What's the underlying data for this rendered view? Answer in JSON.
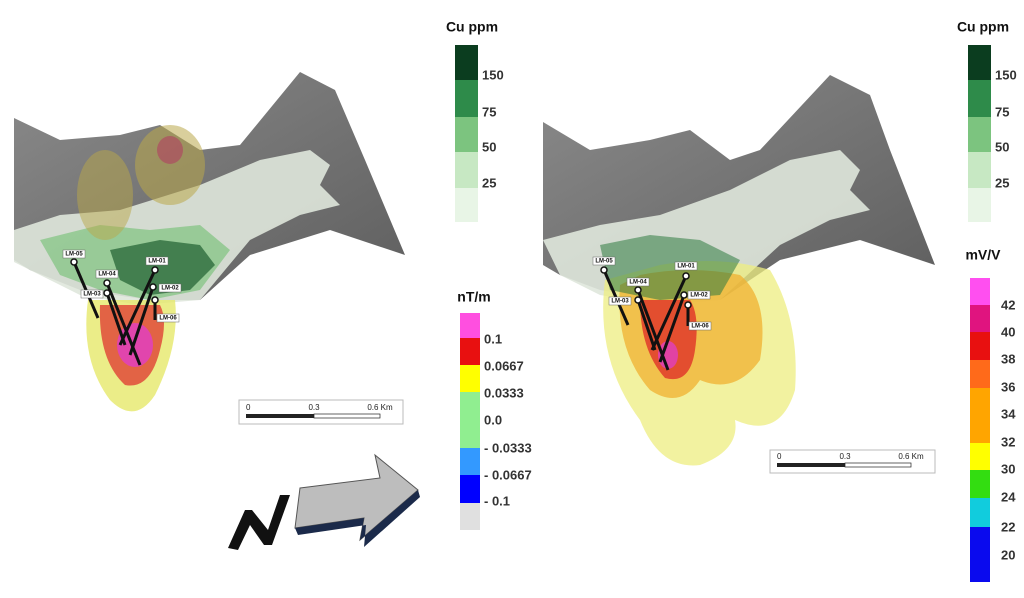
{
  "left_panel": {
    "cu_legend": {
      "title": "Cu ppm",
      "labels": [
        "150",
        "75",
        "50",
        "25"
      ]
    },
    "mag_legend": {
      "title": "nT/m",
      "labels": [
        "0.1",
        "0.0667",
        "0.0333",
        "0.0",
        "- 0.0333",
        "- 0.0667",
        "- 0.1"
      ]
    },
    "scale_bar": {
      "labels": [
        "0",
        "0.3",
        "0.6 Km"
      ]
    },
    "drillholes": [
      "LM-05",
      "LM-04",
      "LM-03",
      "LM-01",
      "LM-02",
      "LM-06"
    ]
  },
  "right_panel": {
    "cu_legend": {
      "title": "Cu ppm",
      "labels": [
        "150",
        "75",
        "50",
        "25"
      ]
    },
    "ip_legend": {
      "title": "mV/V",
      "labels": [
        "42",
        "40",
        "38",
        "36",
        "34",
        "32",
        "30",
        "24",
        "22",
        "20"
      ]
    },
    "scale_bar": {
      "labels": [
        "0",
        "0.3",
        "0.6 Km"
      ]
    },
    "drillholes": [
      "LM-05",
      "LM-04",
      "LM-03",
      "LM-01",
      "LM-02",
      "LM-06"
    ]
  }
}
